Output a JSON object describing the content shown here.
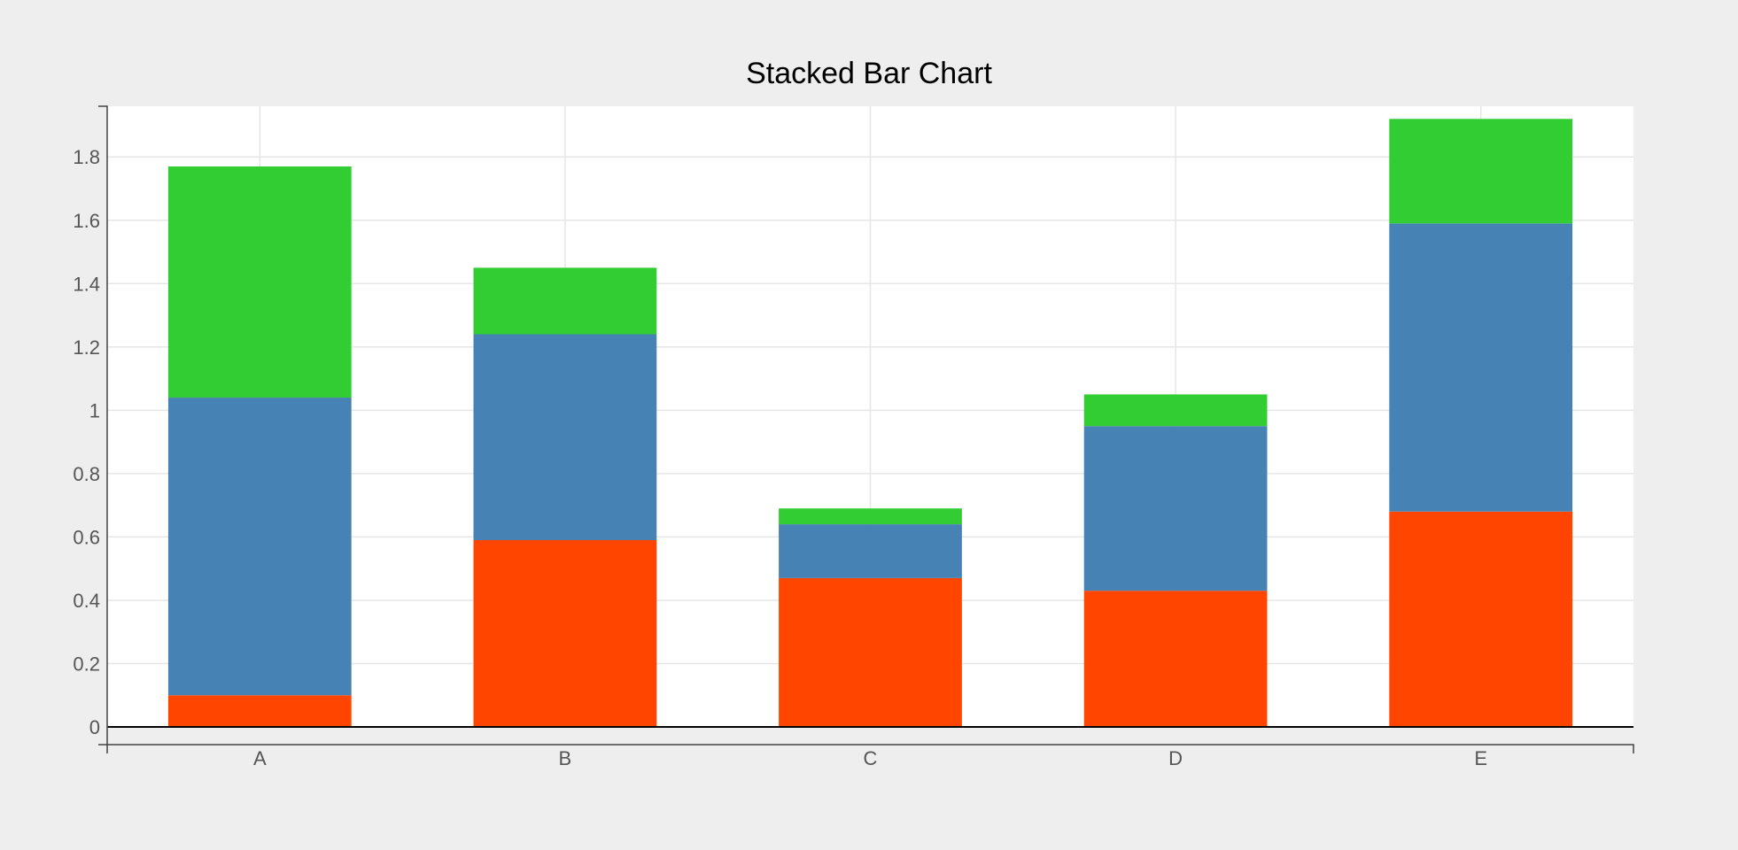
{
  "colors": {
    "background": "#eeeeee",
    "plot_background": "#ffffff",
    "grid": "#e6e6e6"
  },
  "chart_data": {
    "type": "bar",
    "stacked": true,
    "title": "Stacked Bar Chart",
    "xlabel": "",
    "ylabel": "",
    "categories": [
      "A",
      "B",
      "C",
      "D",
      "E"
    ],
    "series": [
      {
        "color": "#ff4500",
        "values": [
          0.1,
          0.59,
          0.47,
          0.43,
          0.68
        ]
      },
      {
        "color": "#4682b4",
        "values": [
          0.94,
          0.65,
          0.17,
          0.52,
          0.91
        ]
      },
      {
        "color": "#32cd32",
        "values": [
          0.73,
          0.21,
          0.05,
          0.1,
          0.33
        ]
      }
    ],
    "ylim": [
      0,
      1.96
    ],
    "yticks": [
      0,
      0.2,
      0.4,
      0.6,
      0.8,
      1,
      1.2,
      1.4,
      1.6,
      1.8
    ],
    "ytick_labels": [
      "0",
      "0.2",
      "0.4",
      "0.6",
      "0.8",
      "1",
      "1.2",
      "1.4",
      "1.6",
      "1.8"
    ],
    "grid": true,
    "legend": false
  }
}
